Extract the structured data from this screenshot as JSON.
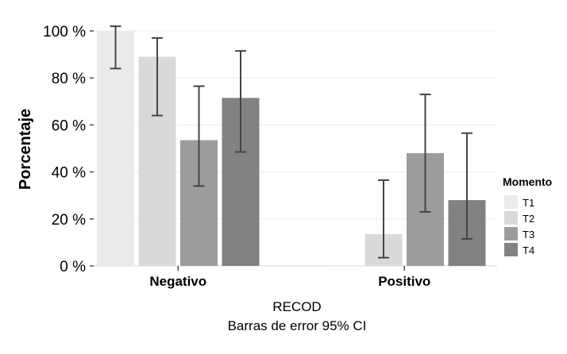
{
  "chart_data": {
    "type": "bar",
    "categories": [
      "Negativo",
      "Positivo"
    ],
    "series": [
      {
        "name": "T1",
        "color": "#ebebeb",
        "values": [
          100,
          0
        ],
        "ci_low": [
          84,
          0
        ],
        "ci_high": [
          102,
          0
        ]
      },
      {
        "name": "T2",
        "color": "#d9d9d9",
        "values": [
          89,
          13.5
        ],
        "ci_low": [
          64,
          3.5
        ],
        "ci_high": [
          97,
          36.5
        ]
      },
      {
        "name": "T3",
        "color": "#9c9c9c",
        "values": [
          53.5,
          48
        ],
        "ci_low": [
          34,
          23
        ],
        "ci_high": [
          76.5,
          73
        ]
      },
      {
        "name": "T4",
        "color": "#828282",
        "values": [
          71.5,
          28
        ],
        "ci_low": [
          48.5,
          11.5
        ],
        "ci_high": [
          91.5,
          56.5
        ]
      }
    ],
    "ylabel": "Porcentaje",
    "xlabel": "RECOD",
    "subtitle": "Barras de error 95% CI",
    "ylim": [
      0,
      100
    ],
    "yticks": [
      0,
      20,
      40,
      60,
      80,
      100
    ],
    "ytick_labels": [
      "0 %",
      "20 %",
      "40 %",
      "60 %",
      "80 %",
      "100 %"
    ],
    "legend_title": "Momento",
    "legend_position": "right",
    "grid": true
  }
}
